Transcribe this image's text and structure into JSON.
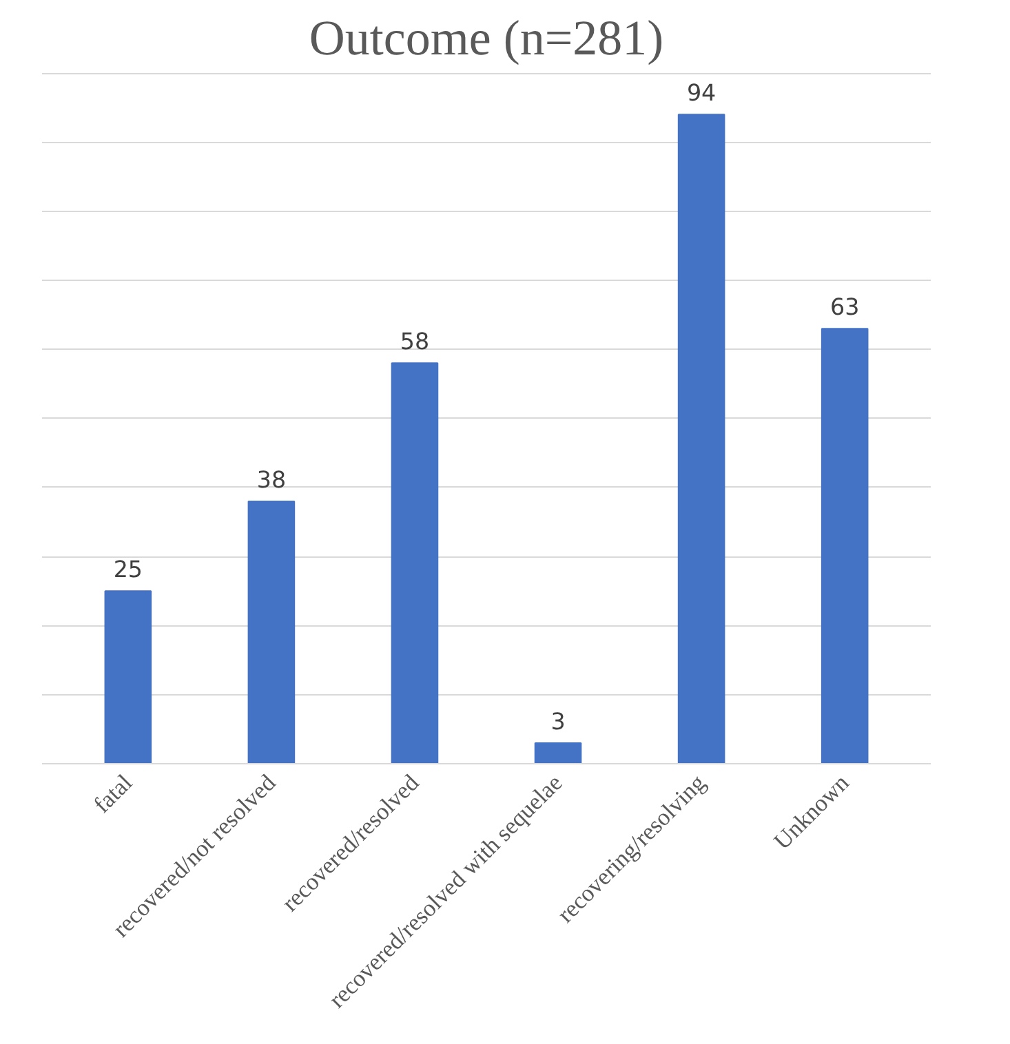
{
  "chart_data": {
    "type": "bar",
    "title": "Outcome (n=281)",
    "categories": [
      "fatal",
      "recovered/not resolved",
      "recovered/resolved",
      "recovered/resolved with sequelae",
      "recovering/resolving",
      "Unknown"
    ],
    "values": [
      25,
      38,
      58,
      3,
      94,
      63
    ],
    "color": "#4472c4",
    "tick_labels": "x",
    "grid": "y",
    "data_labels": true
  }
}
